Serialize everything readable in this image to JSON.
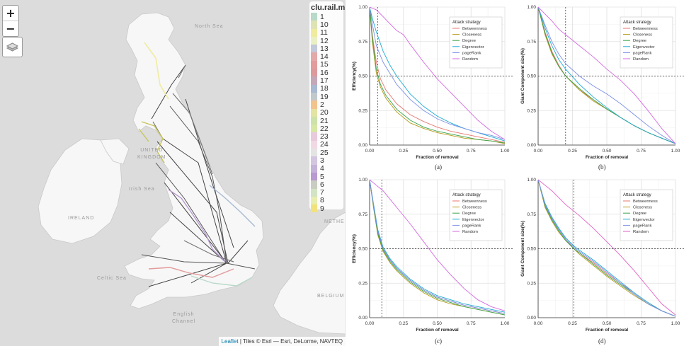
{
  "map": {
    "zoom_in": "+",
    "zoom_out": "−",
    "layers_icon": "layers-icon",
    "legend": {
      "title": "clu.rail.m",
      "items": [
        {
          "label": "1",
          "color": "#b9d9c9"
        },
        {
          "label": "10",
          "color": "#dfe3b4"
        },
        {
          "label": "11",
          "color": "#efec9f"
        },
        {
          "label": "12",
          "color": "#eaf0c4"
        },
        {
          "label": "13",
          "color": "#c2c9d9"
        },
        {
          "label": "14",
          "color": "#e3a8a8"
        },
        {
          "label": "15",
          "color": "#e39b9b"
        },
        {
          "label": "16",
          "color": "#dc9a9d"
        },
        {
          "label": "17",
          "color": "#c4a8b7"
        },
        {
          "label": "18",
          "color": "#a8b9d1"
        },
        {
          "label": "19",
          "color": "#c0c8cc"
        },
        {
          "label": "2",
          "color": "#f3c38e"
        },
        {
          "label": "20",
          "color": "#e3e3a2"
        },
        {
          "label": "21",
          "color": "#cde2a9"
        },
        {
          "label": "22",
          "color": "#d7e7a6"
        },
        {
          "label": "23",
          "color": "#e9c9dc"
        },
        {
          "label": "24",
          "color": "#f1d9e3"
        },
        {
          "label": "25",
          "color": "#e4e4e4"
        },
        {
          "label": "3",
          "color": "#d3c6e1"
        },
        {
          "label": "4",
          "color": "#c5b2d9"
        },
        {
          "label": "5",
          "color": "#b79ad0"
        },
        {
          "label": "6",
          "color": "#c9cdc1"
        },
        {
          "label": "7",
          "color": "#d2e4c4"
        },
        {
          "label": "8",
          "color": "#e8edb0"
        },
        {
          "label": "9",
          "color": "#f2e27c"
        }
      ]
    },
    "labels": {
      "north_sea": "North Sea",
      "uk": "UNITED\nKINGDOM",
      "irish_sea": "Irish Sea",
      "ireland": "IRELAND",
      "celtic_sea": "Celtic Sea",
      "english_channel": "English\nChannel",
      "nether": "NETHE",
      "belgium": "BELGIUM"
    },
    "attribution": {
      "leaflet": "Leaflet",
      "rest": " | Tiles © Esri — Esri, DeLorme, NAVTEQ"
    }
  },
  "colors": {
    "Betweenness": "#e8776f",
    "Closeness": "#b59a1c",
    "Degree": "#3aa34a",
    "Eigenvector": "#1eaad1",
    "pageRank": "#7c8fe8",
    "Random": "#d36ae0",
    "Random_d": "#e262c3"
  },
  "chart_data": [
    {
      "type": "line",
      "caption": "(a)",
      "xlabel": "Fraction of removal",
      "ylabel": "Efficiency(%)",
      "xlim": [
        0,
        1
      ],
      "ylim": [
        0,
        1
      ],
      "xticks": [
        "0.00",
        "0.25",
        "0.50",
        "0.75",
        "1.00"
      ],
      "yticks": [
        "0.00",
        "0.25",
        "0.50",
        "0.75",
        "1.00"
      ],
      "vline": 0.06,
      "hline": 0.5,
      "legend_title": "Attack strategy",
      "legend_position": "top-right",
      "grid": true,
      "series": [
        {
          "name": "Betweenness",
          "x": [
            0,
            0.02,
            0.05,
            0.08,
            0.12,
            0.2,
            0.3,
            0.4,
            0.5,
            0.6,
            0.7,
            0.8,
            0.9,
            1
          ],
          "y": [
            1,
            0.8,
            0.6,
            0.48,
            0.4,
            0.3,
            0.22,
            0.17,
            0.13,
            0.1,
            0.08,
            0.06,
            0.04,
            0.02
          ]
        },
        {
          "name": "Closeness",
          "x": [
            0,
            0.02,
            0.05,
            0.08,
            0.12,
            0.2,
            0.3,
            0.4,
            0.5,
            0.6,
            0.7,
            0.8,
            0.9,
            1
          ],
          "y": [
            1,
            0.75,
            0.52,
            0.42,
            0.34,
            0.24,
            0.16,
            0.12,
            0.09,
            0.07,
            0.05,
            0.04,
            0.03,
            0.01
          ]
        },
        {
          "name": "Degree",
          "x": [
            0,
            0.02,
            0.05,
            0.08,
            0.12,
            0.2,
            0.3,
            0.4,
            0.5,
            0.6,
            0.7,
            0.8,
            0.9,
            1
          ],
          "y": [
            1,
            0.78,
            0.55,
            0.44,
            0.36,
            0.26,
            0.18,
            0.13,
            0.1,
            0.08,
            0.06,
            0.04,
            0.03,
            0.015
          ]
        },
        {
          "name": "Eigenvector",
          "x": [
            0,
            0.02,
            0.05,
            0.1,
            0.15,
            0.2,
            0.3,
            0.4,
            0.5,
            0.6,
            0.7,
            0.8,
            0.9,
            1
          ],
          "y": [
            1,
            0.92,
            0.82,
            0.68,
            0.58,
            0.5,
            0.37,
            0.28,
            0.21,
            0.16,
            0.12,
            0.09,
            0.06,
            0.03
          ]
        },
        {
          "name": "pageRank",
          "x": [
            0,
            0.02,
            0.05,
            0.1,
            0.15,
            0.2,
            0.3,
            0.4,
            0.5,
            0.6,
            0.7,
            0.8,
            0.9,
            1
          ],
          "y": [
            1,
            0.88,
            0.72,
            0.6,
            0.52,
            0.44,
            0.33,
            0.25,
            0.19,
            0.15,
            0.12,
            0.09,
            0.07,
            0.04
          ]
        },
        {
          "name": "Random",
          "x": [
            0,
            0.05,
            0.1,
            0.15,
            0.2,
            0.25,
            0.3,
            0.4,
            0.5,
            0.6,
            0.7,
            0.8,
            0.9,
            1
          ],
          "y": [
            1,
            0.98,
            0.93,
            0.88,
            0.83,
            0.8,
            0.73,
            0.6,
            0.48,
            0.38,
            0.28,
            0.18,
            0.1,
            0.04
          ]
        }
      ]
    },
    {
      "type": "line",
      "caption": "(b)",
      "xlabel": "Fraction of removal",
      "ylabel": "Giant Component size(%)",
      "xlim": [
        0,
        1
      ],
      "ylim": [
        0,
        1
      ],
      "xticks": [
        "0.00",
        "0.25",
        "0.50",
        "0.75",
        "1.00"
      ],
      "yticks": [
        "0.00",
        "0.25",
        "0.50",
        "0.75",
        "1.00"
      ],
      "vline": 0.2,
      "hline": 0.5,
      "legend_title": "Attack strategy",
      "legend_position": "top-right",
      "grid": true,
      "series": [
        {
          "name": "Betweenness",
          "x": [
            0,
            0.05,
            0.1,
            0.15,
            0.2,
            0.3,
            0.4,
            0.5,
            0.6,
            0.7,
            0.8,
            0.9,
            1
          ],
          "y": [
            1,
            0.82,
            0.68,
            0.58,
            0.5,
            0.4,
            0.33,
            0.26,
            0.2,
            0.14,
            0.09,
            0.05,
            0.01
          ]
        },
        {
          "name": "Closeness",
          "x": [
            0,
            0.05,
            0.1,
            0.15,
            0.2,
            0.3,
            0.4,
            0.5,
            0.6,
            0.7,
            0.8,
            0.9,
            1
          ],
          "y": [
            1,
            0.8,
            0.66,
            0.57,
            0.5,
            0.4,
            0.32,
            0.26,
            0.2,
            0.14,
            0.09,
            0.05,
            0.01
          ]
        },
        {
          "name": "Degree",
          "x": [
            0,
            0.05,
            0.1,
            0.15,
            0.2,
            0.3,
            0.4,
            0.5,
            0.6,
            0.7,
            0.8,
            0.9,
            1
          ],
          "y": [
            1,
            0.81,
            0.67,
            0.57,
            0.5,
            0.41,
            0.33,
            0.26,
            0.2,
            0.14,
            0.09,
            0.05,
            0.01
          ]
        },
        {
          "name": "Eigenvector",
          "x": [
            0,
            0.05,
            0.1,
            0.15,
            0.2,
            0.3,
            0.4,
            0.5,
            0.6,
            0.7,
            0.8,
            0.9,
            1
          ],
          "y": [
            1,
            0.85,
            0.72,
            0.62,
            0.55,
            0.44,
            0.35,
            0.27,
            0.2,
            0.14,
            0.09,
            0.05,
            0.01
          ]
        },
        {
          "name": "pageRank",
          "x": [
            0,
            0.05,
            0.1,
            0.15,
            0.2,
            0.3,
            0.4,
            0.5,
            0.6,
            0.7,
            0.8,
            0.9,
            1
          ],
          "y": [
            1,
            0.87,
            0.75,
            0.66,
            0.59,
            0.5,
            0.43,
            0.37,
            0.3,
            0.22,
            0.14,
            0.07,
            0.01
          ]
        },
        {
          "name": "Random",
          "x": [
            0,
            0.05,
            0.1,
            0.15,
            0.2,
            0.3,
            0.4,
            0.5,
            0.6,
            0.7,
            0.8,
            0.9,
            1
          ],
          "y": [
            1,
            0.95,
            0.9,
            0.84,
            0.8,
            0.72,
            0.64,
            0.55,
            0.47,
            0.37,
            0.25,
            0.12,
            0.01
          ]
        }
      ]
    },
    {
      "type": "line",
      "caption": "(c)",
      "xlabel": "Fraction of removal",
      "ylabel": "Efficiency(%)",
      "xlim": [
        0,
        1
      ],
      "ylim": [
        0,
        1
      ],
      "xticks": [
        "0.00",
        "0.25",
        "0.50",
        "0.75",
        "1.00"
      ],
      "yticks": [
        "0.00",
        "0.25",
        "0.50",
        "0.75",
        "1.00"
      ],
      "vline": 0.09,
      "hline": 0.5,
      "legend_title": "Attack strategy",
      "legend_position": "top-right",
      "grid": true,
      "series": [
        {
          "name": "Betweenness",
          "x": [
            0,
            0.03,
            0.06,
            0.1,
            0.15,
            0.2,
            0.3,
            0.4,
            0.5,
            0.6,
            0.7,
            0.8,
            0.9,
            1
          ],
          "y": [
            1,
            0.8,
            0.62,
            0.5,
            0.42,
            0.36,
            0.27,
            0.2,
            0.15,
            0.12,
            0.09,
            0.07,
            0.05,
            0.03
          ]
        },
        {
          "name": "Closeness",
          "x": [
            0,
            0.03,
            0.06,
            0.1,
            0.15,
            0.2,
            0.3,
            0.4,
            0.5,
            0.6,
            0.7,
            0.8,
            0.9,
            1
          ],
          "y": [
            1,
            0.79,
            0.6,
            0.48,
            0.4,
            0.34,
            0.25,
            0.18,
            0.13,
            0.1,
            0.08,
            0.06,
            0.04,
            0.02
          ]
        },
        {
          "name": "Degree",
          "x": [
            0,
            0.03,
            0.06,
            0.1,
            0.15,
            0.2,
            0.3,
            0.4,
            0.5,
            0.6,
            0.7,
            0.8,
            0.9,
            1
          ],
          "y": [
            1,
            0.8,
            0.61,
            0.49,
            0.41,
            0.35,
            0.26,
            0.19,
            0.14,
            0.11,
            0.08,
            0.06,
            0.04,
            0.02
          ]
        },
        {
          "name": "Eigenvector",
          "x": [
            0,
            0.03,
            0.06,
            0.1,
            0.15,
            0.2,
            0.3,
            0.4,
            0.5,
            0.6,
            0.7,
            0.8,
            0.9,
            1
          ],
          "y": [
            1,
            0.82,
            0.64,
            0.51,
            0.43,
            0.37,
            0.28,
            0.21,
            0.16,
            0.13,
            0.1,
            0.08,
            0.06,
            0.04
          ]
        },
        {
          "name": "pageRank",
          "x": [
            0,
            0.03,
            0.06,
            0.1,
            0.15,
            0.2,
            0.3,
            0.4,
            0.5,
            0.6,
            0.7,
            0.8,
            0.9,
            1
          ],
          "y": [
            1,
            0.81,
            0.63,
            0.5,
            0.42,
            0.36,
            0.27,
            0.2,
            0.15,
            0.12,
            0.09,
            0.07,
            0.05,
            0.03
          ]
        },
        {
          "name": "Random",
          "x": [
            0,
            0.05,
            0.1,
            0.15,
            0.2,
            0.3,
            0.4,
            0.5,
            0.6,
            0.7,
            0.8,
            0.9,
            1
          ],
          "y": [
            1,
            0.96,
            0.92,
            0.86,
            0.8,
            0.68,
            0.55,
            0.42,
            0.31,
            0.21,
            0.13,
            0.08,
            0.05
          ]
        }
      ]
    },
    {
      "type": "line",
      "caption": "(d)",
      "xlabel": "Fraction of removal",
      "ylabel": "Giant Component size(%)",
      "xlim": [
        0,
        1
      ],
      "ylim": [
        0,
        1
      ],
      "xticks": [
        "0.00",
        "0.25",
        "0.50",
        "0.75",
        "1.00"
      ],
      "yticks": [
        "0.00",
        "0.25",
        "0.50",
        "0.75",
        "1.00"
      ],
      "vline": 0.26,
      "hline": 0.5,
      "legend_title": "Attack strategy",
      "legend_position": "top-right",
      "grid": true,
      "series": [
        {
          "name": "Betweenness",
          "x": [
            0,
            0.05,
            0.1,
            0.15,
            0.2,
            0.26,
            0.3,
            0.4,
            0.5,
            0.6,
            0.7,
            0.8,
            0.9,
            1
          ],
          "y": [
            1,
            0.82,
            0.72,
            0.64,
            0.57,
            0.5,
            0.47,
            0.4,
            0.32,
            0.25,
            0.18,
            0.11,
            0.05,
            0.01
          ]
        },
        {
          "name": "Closeness",
          "x": [
            0,
            0.05,
            0.1,
            0.15,
            0.2,
            0.26,
            0.3,
            0.4,
            0.5,
            0.6,
            0.7,
            0.8,
            0.9,
            1
          ],
          "y": [
            1,
            0.8,
            0.7,
            0.62,
            0.56,
            0.5,
            0.46,
            0.38,
            0.3,
            0.23,
            0.16,
            0.1,
            0.05,
            0.01
          ]
        },
        {
          "name": "Degree",
          "x": [
            0,
            0.05,
            0.1,
            0.15,
            0.2,
            0.26,
            0.3,
            0.4,
            0.5,
            0.6,
            0.7,
            0.8,
            0.9,
            1
          ],
          "y": [
            1,
            0.81,
            0.71,
            0.63,
            0.56,
            0.5,
            0.47,
            0.39,
            0.31,
            0.24,
            0.17,
            0.1,
            0.05,
            0.01
          ]
        },
        {
          "name": "Eigenvector",
          "x": [
            0,
            0.05,
            0.1,
            0.15,
            0.2,
            0.26,
            0.3,
            0.4,
            0.5,
            0.6,
            0.7,
            0.8,
            0.9,
            1
          ],
          "y": [
            1,
            0.83,
            0.73,
            0.65,
            0.58,
            0.52,
            0.49,
            0.42,
            0.34,
            0.26,
            0.18,
            0.11,
            0.05,
            0.01
          ]
        },
        {
          "name": "pageRank",
          "x": [
            0,
            0.05,
            0.1,
            0.15,
            0.2,
            0.26,
            0.3,
            0.4,
            0.5,
            0.6,
            0.7,
            0.8,
            0.9,
            1
          ],
          "y": [
            1,
            0.82,
            0.72,
            0.64,
            0.57,
            0.51,
            0.48,
            0.41,
            0.33,
            0.25,
            0.17,
            0.1,
            0.05,
            0.01
          ]
        },
        {
          "name": "Random",
          "x": [
            0,
            0.05,
            0.1,
            0.15,
            0.2,
            0.3,
            0.4,
            0.5,
            0.6,
            0.7,
            0.8,
            0.9,
            1
          ],
          "y": [
            1,
            0.96,
            0.92,
            0.87,
            0.82,
            0.74,
            0.65,
            0.55,
            0.45,
            0.34,
            0.22,
            0.1,
            0.02
          ]
        }
      ]
    }
  ]
}
